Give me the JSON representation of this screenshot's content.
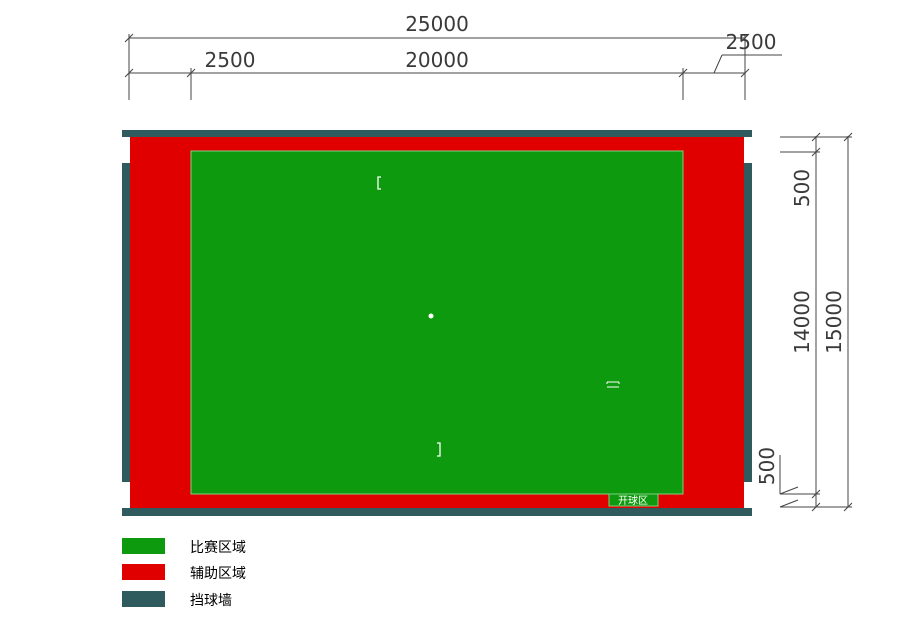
{
  "dimensions": {
    "total_width": "25000",
    "left_aux_width": "2500",
    "field_width": "20000",
    "right_aux_width": "2500",
    "top_aux_height": "500",
    "field_height": "14000",
    "total_height": "15000",
    "bottom_aux_height": "500"
  },
  "zones": {
    "kickoff_label": "开球区"
  },
  "legend": [
    {
      "label": "比赛区域",
      "color": "#0e9a0e"
    },
    {
      "label": "辅助区域",
      "color": "#e00000"
    },
    {
      "label": "挡球墙",
      "color": "#2f5b5e"
    }
  ],
  "colors": {
    "play_area": "#0e9a0e",
    "aux_area": "#e00000",
    "wall": "#2f5b5e",
    "dimension_line": "#555555"
  }
}
